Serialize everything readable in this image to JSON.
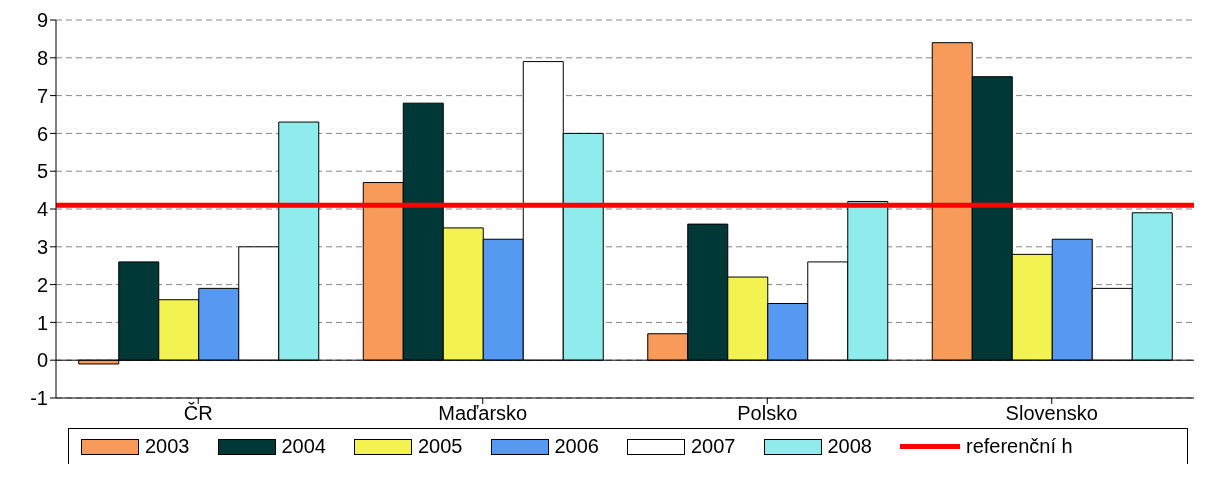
{
  "chart_data": {
    "type": "bar",
    "categories": [
      "ČR",
      "Maďarsko",
      "Polsko",
      "Slovensko"
    ],
    "series": [
      {
        "name": "2003",
        "color": "#f79a5a",
        "values": [
          -0.1,
          4.7,
          0.7,
          8.4
        ]
      },
      {
        "name": "2004",
        "color": "#003838",
        "values": [
          2.6,
          6.8,
          3.6,
          7.5
        ]
      },
      {
        "name": "2005",
        "color": "#f2f250",
        "values": [
          1.6,
          3.5,
          2.2,
          2.8
        ]
      },
      {
        "name": "2006",
        "color": "#5599f0",
        "values": [
          1.9,
          3.2,
          1.5,
          3.2
        ]
      },
      {
        "name": "2007",
        "color": "#ffffff",
        "values": [
          3.0,
          7.9,
          2.6,
          1.9
        ]
      },
      {
        "name": "2008",
        "color": "#90ecec",
        "values": [
          6.3,
          6.0,
          4.2,
          3.9
        ]
      }
    ],
    "ref_lines": [
      {
        "axis": "y",
        "value": 4.1,
        "label": "referenční h",
        "color": "#ff0000"
      }
    ],
    "ylim": [
      -1,
      9
    ],
    "yticks": [
      -1,
      0,
      1,
      2,
      3,
      4,
      5,
      6,
      7,
      8,
      9
    ],
    "grid": "y",
    "legend": "bottom"
  }
}
